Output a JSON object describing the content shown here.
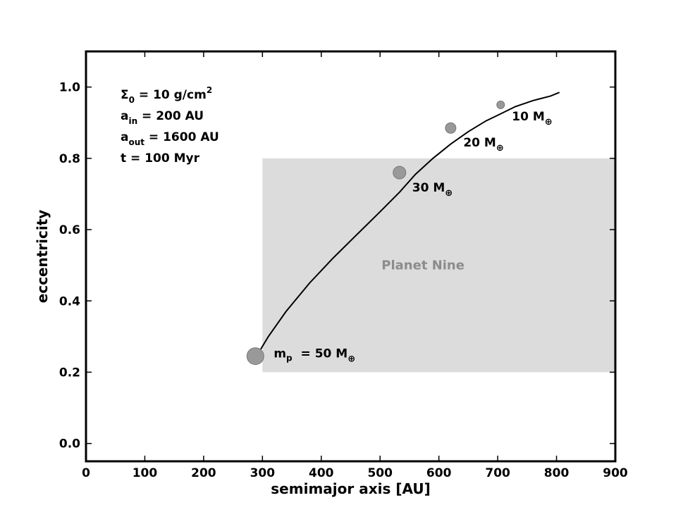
{
  "chart_data": {
    "type": "scatter",
    "xlabel": "semimajor axis [AU]",
    "ylabel": "eccentricity",
    "xlim": [
      0,
      900
    ],
    "ylim": [
      -0.05,
      1.1
    ],
    "xticks": [
      0,
      100,
      200,
      300,
      400,
      500,
      600,
      700,
      800,
      900
    ],
    "yticks": [
      0.0,
      0.2,
      0.4,
      0.6,
      0.8,
      1.0
    ],
    "grid": false,
    "region": {
      "label": "Planet Nine",
      "x": [
        300,
        900
      ],
      "y": [
        0.2,
        0.8
      ],
      "color": "#dcdcdc",
      "label_color": "#8c8c8c"
    },
    "curve": {
      "x": [
        290,
        310,
        340,
        380,
        420,
        460,
        500,
        533,
        560,
        590,
        620,
        650,
        680,
        705,
        730,
        760,
        790,
        805
      ],
      "y": [
        0.245,
        0.3,
        0.37,
        0.45,
        0.52,
        0.585,
        0.65,
        0.705,
        0.755,
        0.8,
        0.84,
        0.875,
        0.905,
        0.925,
        0.945,
        0.962,
        0.975,
        0.985
      ],
      "color": "#000000"
    },
    "points": [
      {
        "x": 288,
        "y": 0.245,
        "mass": "50",
        "prefix": "m",
        "prefix_sub": "p",
        "equals": "=",
        "unit": "M",
        "unit_sub": "⊕"
      },
      {
        "x": 533,
        "y": 0.76,
        "mass": "30",
        "unit": "M",
        "unit_sub": "⊕"
      },
      {
        "x": 620,
        "y": 0.885,
        "mass": "20",
        "unit": "M",
        "unit_sub": "⊕"
      },
      {
        "x": 705,
        "y": 0.95,
        "mass": "10",
        "unit": "M",
        "unit_sub": "⊕"
      }
    ],
    "point_color": "#999999",
    "point_edge": "#777777",
    "params": [
      {
        "sym": "Σ",
        "sub": "0",
        "rest": " = 10 g/cm",
        "sup": "2"
      },
      {
        "sym": "a",
        "sub": "in",
        "rest": " = 200 AU",
        "sup": ""
      },
      {
        "sym": "a",
        "sub": "out",
        "rest": " = 1600 AU",
        "sup": ""
      },
      {
        "sym": "t",
        "sub": "",
        "rest": " = 100 Myr",
        "sup": ""
      }
    ]
  }
}
